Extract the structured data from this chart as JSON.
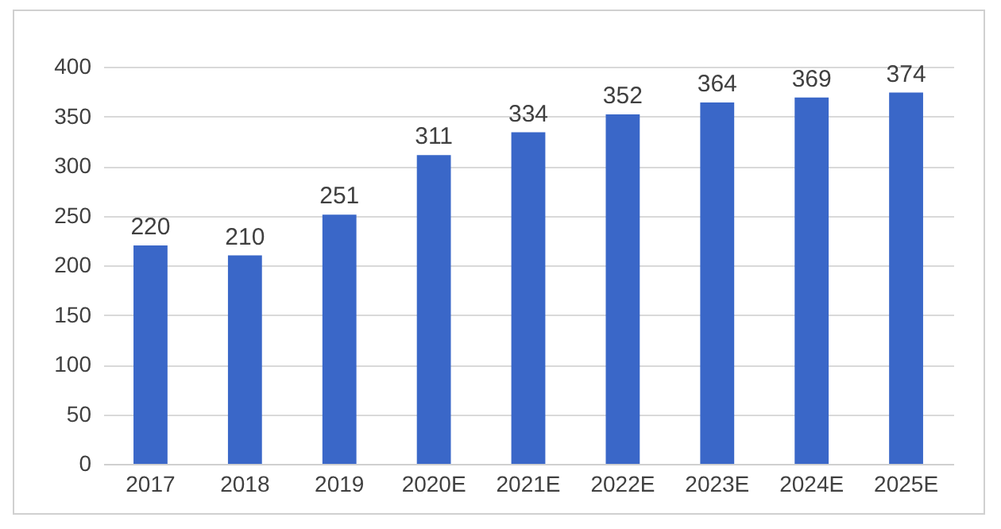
{
  "chart_data": {
    "type": "bar",
    "categories": [
      "2017",
      "2018",
      "2019",
      "2020E",
      "2021E",
      "2022E",
      "2023E",
      "2024E",
      "2025E"
    ],
    "values": [
      220,
      210,
      251,
      311,
      334,
      352,
      364,
      369,
      374
    ],
    "color": "#3a67c8",
    "ylim": [
      0,
      400
    ],
    "yticks": [
      0,
      50,
      100,
      150,
      200,
      250,
      300,
      350,
      400
    ],
    "grid": "y",
    "data_labels": true
  }
}
